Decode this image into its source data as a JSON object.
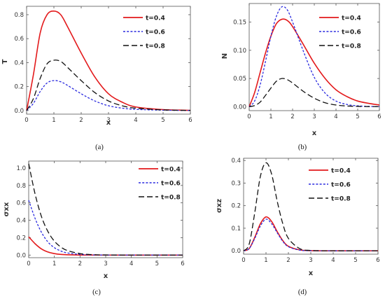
{
  "legend": [
    "t=0.4",
    "t=0.6",
    "t=0.8"
  ],
  "colors": {
    "t04": "#e31a1c",
    "t06": "#2a2adf",
    "t08": "#111111"
  },
  "chart_data": [
    {
      "type": "line",
      "caption": "(a)",
      "xlabel": "x",
      "ylabel": "T",
      "xlim": [
        0,
        6
      ],
      "ylim": [
        -0.03,
        0.87
      ],
      "xticks": [
        0,
        1,
        2,
        3,
        4,
        5,
        6
      ],
      "yticks": [
        0.0,
        0.2,
        0.4,
        0.6,
        0.8
      ],
      "ytick_labels": [
        "0.0",
        "0.2",
        "0.4",
        "0.6",
        "0.8"
      ],
      "legend_position": "top-right",
      "x": [
        0,
        0.25,
        0.5,
        0.75,
        1,
        1.25,
        1.5,
        2,
        2.5,
        3,
        3.5,
        4,
        5,
        6
      ],
      "series": [
        {
          "name": "t=0.4",
          "values": [
            0.0,
            0.3,
            0.65,
            0.8,
            0.83,
            0.8,
            0.7,
            0.48,
            0.28,
            0.14,
            0.07,
            0.03,
            0.008,
            0.002
          ]
        },
        {
          "name": "t=0.6",
          "values": [
            0.0,
            0.06,
            0.16,
            0.23,
            0.25,
            0.24,
            0.21,
            0.14,
            0.08,
            0.04,
            0.02,
            0.01,
            0.003,
            0.001
          ]
        },
        {
          "name": "t=0.8",
          "values": [
            0.0,
            0.1,
            0.27,
            0.39,
            0.42,
            0.41,
            0.36,
            0.25,
            0.15,
            0.08,
            0.04,
            0.02,
            0.005,
            0.001
          ]
        }
      ]
    },
    {
      "type": "line",
      "caption": "(b)",
      "xlabel": "x",
      "ylabel": "N",
      "xlim": [
        0,
        6
      ],
      "ylim": [
        -0.007,
        0.183
      ],
      "xticks": [
        0,
        1,
        2,
        3,
        4,
        5,
        6
      ],
      "yticks": [
        0.0,
        0.05,
        0.1,
        0.15
      ],
      "ytick_labels": [
        "0.00",
        "0.05",
        "0.10",
        "0.15"
      ],
      "legend_position": "top-right",
      "x": [
        0,
        0.25,
        0.5,
        0.75,
        1,
        1.25,
        1.5,
        1.75,
        2,
        2.5,
        3,
        3.5,
        4,
        4.5,
        5,
        5.5,
        6
      ],
      "series": [
        {
          "name": "t=0.4",
          "values": [
            0.0,
            0.025,
            0.06,
            0.095,
            0.125,
            0.147,
            0.155,
            0.153,
            0.142,
            0.11,
            0.077,
            0.05,
            0.03,
            0.018,
            0.01,
            0.006,
            0.003
          ]
        },
        {
          "name": "t=0.6",
          "values": [
            0.0,
            0.01,
            0.038,
            0.08,
            0.125,
            0.16,
            0.177,
            0.172,
            0.15,
            0.098,
            0.052,
            0.024,
            0.01,
            0.004,
            0.0015,
            0.0005,
            0.0002
          ]
        },
        {
          "name": "t=0.8",
          "values": [
            0.0,
            0.002,
            0.008,
            0.02,
            0.033,
            0.045,
            0.05,
            0.048,
            0.042,
            0.027,
            0.015,
            0.007,
            0.003,
            0.0012,
            0.0005,
            0.0002,
            0.0001
          ]
        }
      ]
    },
    {
      "type": "line",
      "caption": "(c)",
      "xlabel": "x",
      "ylabel": "σxx",
      "xlim": [
        0,
        6
      ],
      "ylim": [
        -0.03,
        1.08
      ],
      "xticks": [
        0,
        1,
        2,
        3,
        4,
        5,
        6
      ],
      "yticks": [
        0.0,
        0.2,
        0.4,
        0.6,
        0.8,
        1.0
      ],
      "ytick_labels": [
        "0.0",
        "0.2",
        "0.4",
        "0.6",
        "0.8",
        "1.0"
      ],
      "legend_position": "top-right",
      "x": [
        0,
        0.25,
        0.5,
        0.75,
        1,
        1.25,
        1.5,
        2,
        2.5,
        3,
        4,
        5,
        6
      ],
      "series": [
        {
          "name": "t=0.4",
          "values": [
            0.21,
            0.13,
            0.07,
            0.035,
            0.017,
            0.008,
            0.004,
            0.001,
            0.0003,
            0.0001,
            0.0,
            0.0,
            0.0
          ]
        },
        {
          "name": "t=0.6",
          "values": [
            0.63,
            0.42,
            0.26,
            0.15,
            0.085,
            0.047,
            0.025,
            0.008,
            0.002,
            0.0006,
            0.0,
            0.0,
            0.0
          ]
        },
        {
          "name": "t=0.8",
          "values": [
            1.05,
            0.7,
            0.44,
            0.27,
            0.16,
            0.093,
            0.053,
            0.017,
            0.005,
            0.0015,
            0.0001,
            0.0,
            0.0
          ]
        }
      ]
    },
    {
      "type": "line",
      "caption": "(d)",
      "xlabel": "x",
      "ylabel": "σxz",
      "xlim": [
        0,
        6
      ],
      "ylim": [
        -0.015,
        0.41
      ],
      "xticks": [
        0,
        1,
        2,
        3,
        4,
        5,
        6
      ],
      "yticks": [
        0.0,
        0.1,
        0.2,
        0.3,
        0.4
      ],
      "ytick_labels": [
        "0.0",
        "0.1",
        "0.2",
        "0.3",
        "0.4"
      ],
      "legend_position": "top-right",
      "x": [
        0,
        0.25,
        0.5,
        0.75,
        1,
        1.25,
        1.5,
        1.75,
        2,
        2.5,
        3,
        4,
        5,
        6
      ],
      "series": [
        {
          "name": "t=0.4",
          "values": [
            0.0,
            0.01,
            0.06,
            0.12,
            0.15,
            0.13,
            0.085,
            0.045,
            0.02,
            0.004,
            0.0008,
            0.0,
            0.0,
            0.0
          ]
        },
        {
          "name": "t=0.6",
          "values": [
            0.0,
            0.01,
            0.055,
            0.11,
            0.14,
            0.12,
            0.08,
            0.042,
            0.018,
            0.003,
            0.0006,
            0.0,
            0.0,
            0.0
          ]
        },
        {
          "name": "t=0.8",
          "values": [
            0.0,
            0.03,
            0.17,
            0.33,
            0.39,
            0.34,
            0.22,
            0.12,
            0.055,
            0.01,
            0.0015,
            0.0,
            0.0,
            0.0
          ]
        }
      ]
    }
  ]
}
